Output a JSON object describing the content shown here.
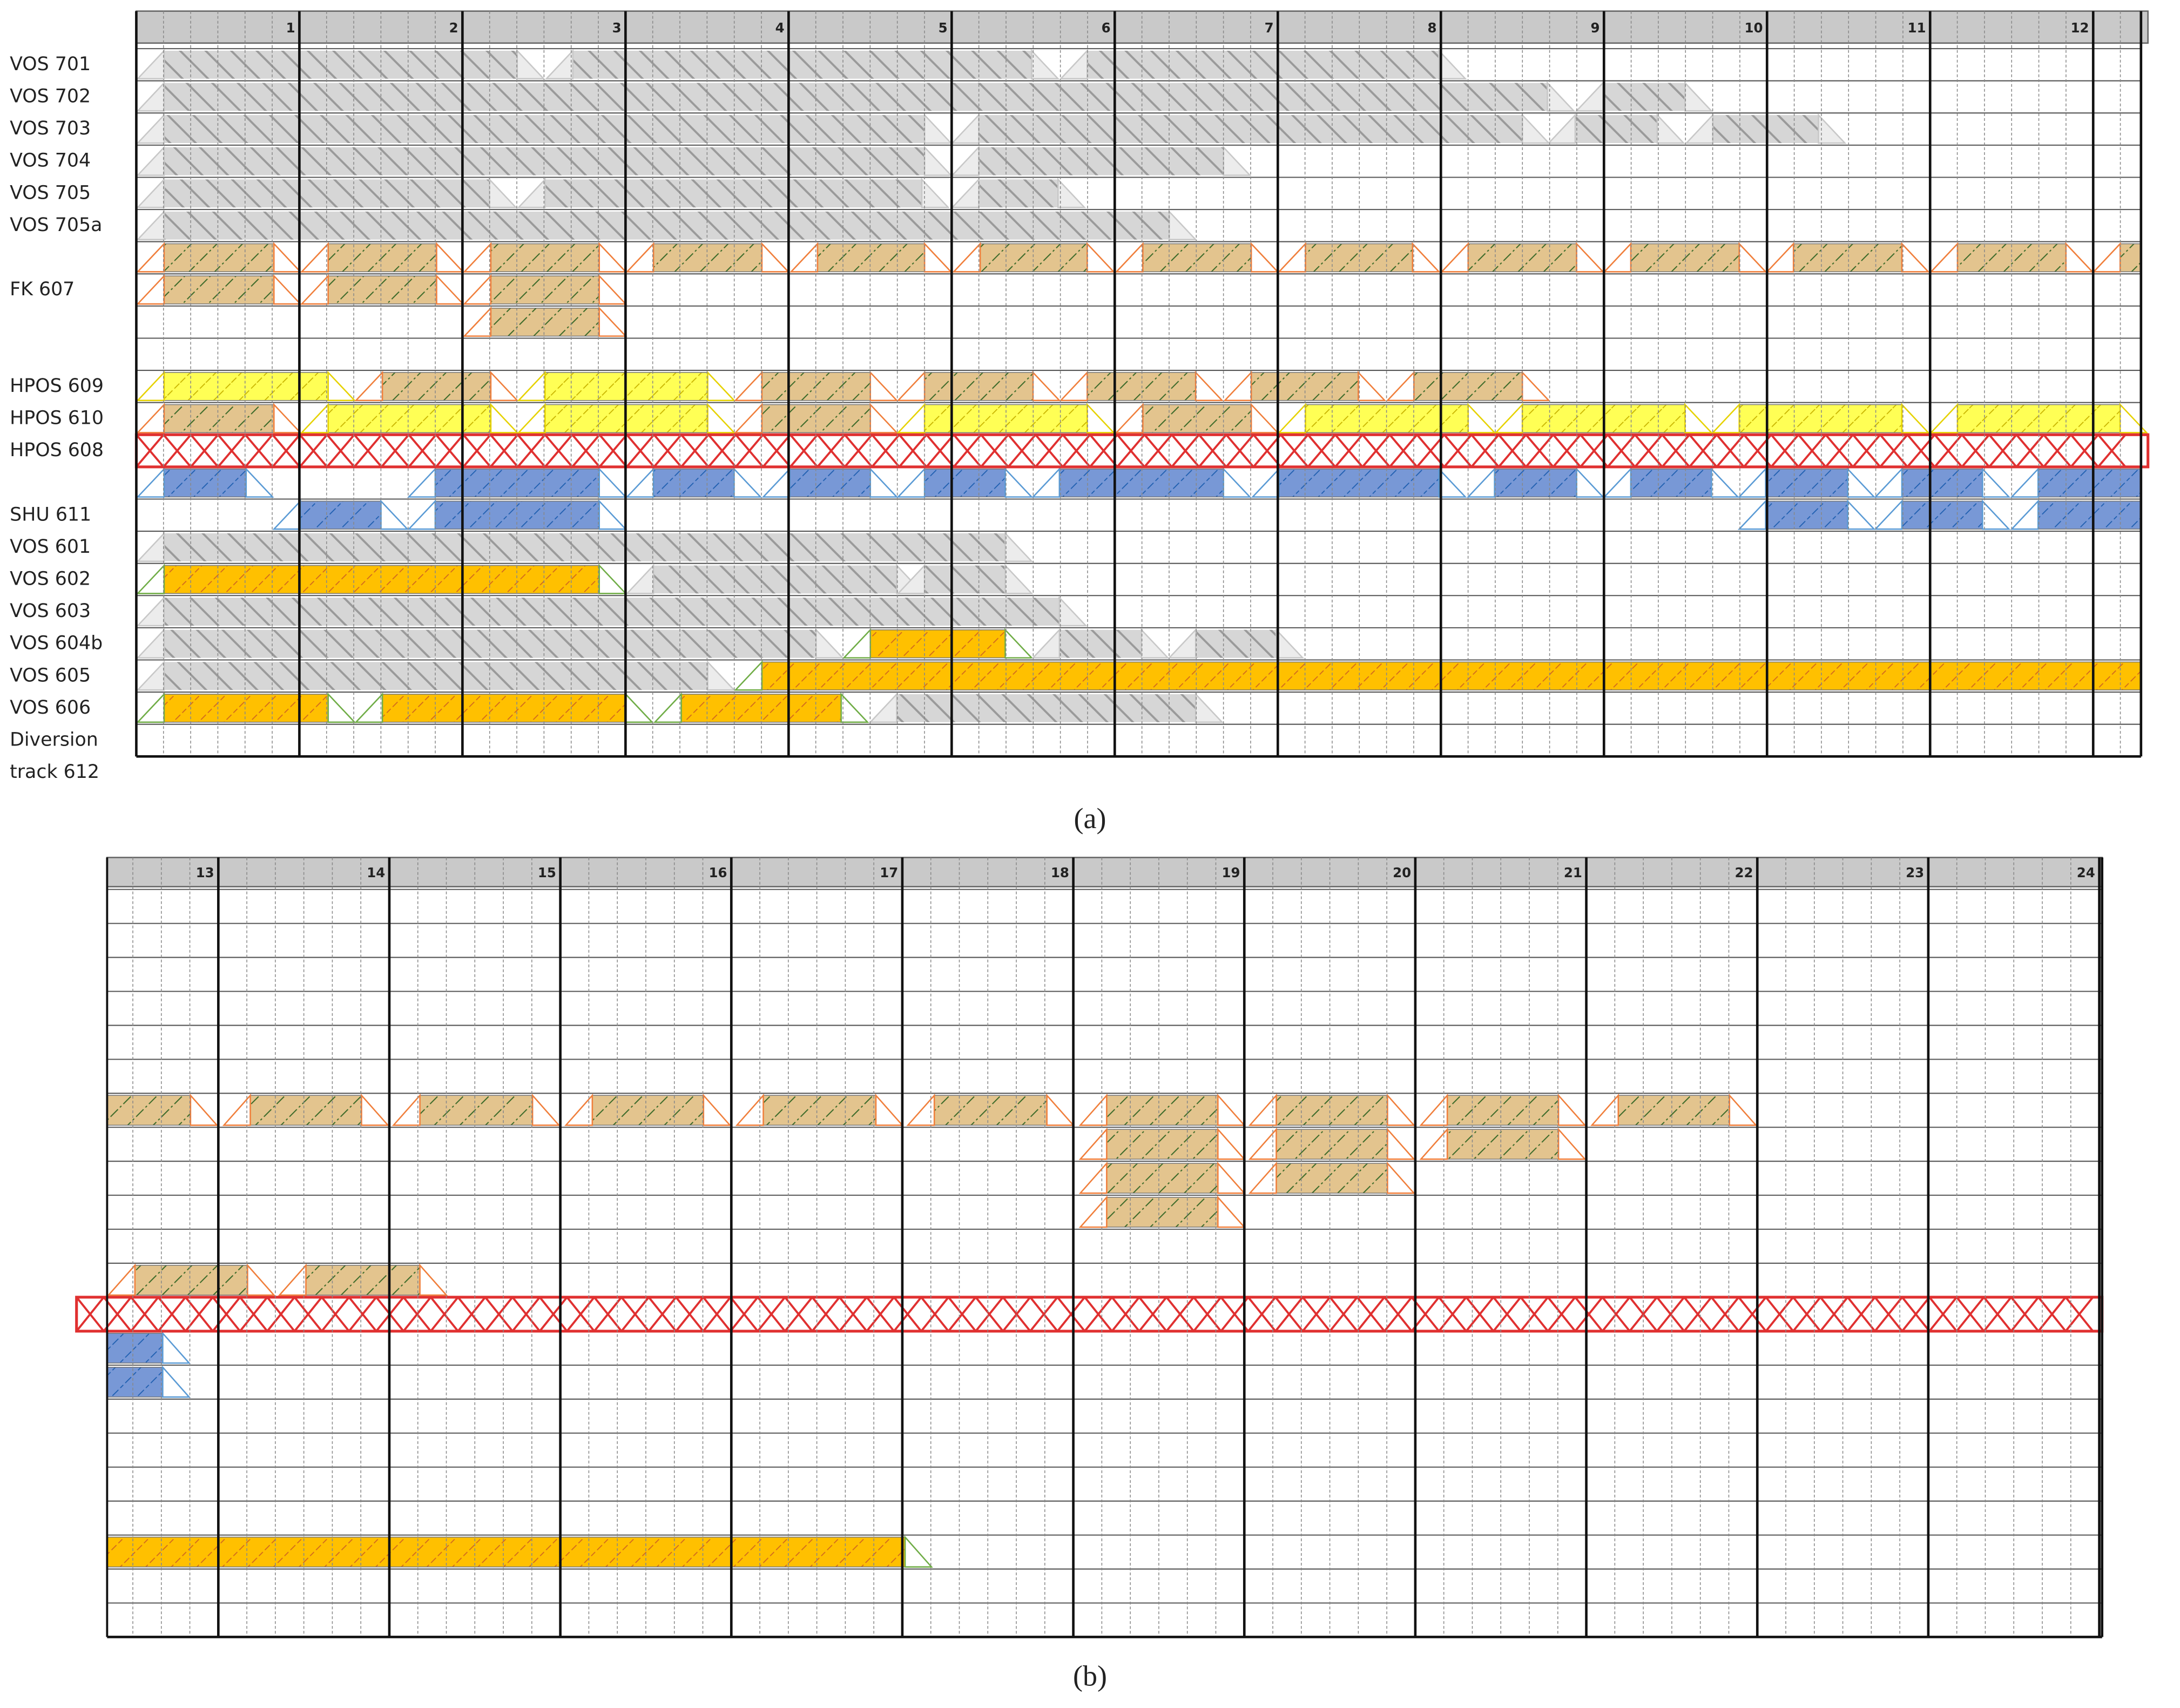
{
  "panels": [
    {
      "label": "(a)",
      "hours": [
        "1",
        "2",
        "3",
        "4",
        "5",
        "6",
        "7",
        "8",
        "9",
        "10",
        "11",
        "12"
      ],
      "rows": [
        "VOS 701",
        "VOS 702",
        "VOS 703",
        "VOS 704",
        "VOS 705",
        "VOS 705a",
        null,
        "FK 607",
        null,
        null,
        "HPOS 609",
        "HPOS 610",
        "HPOS 608",
        null,
        "SHU 611",
        "VOS 601",
        "VOS 602",
        "VOS 603",
        "VOS 604b",
        "VOS 605",
        "VOS 606",
        [
          "Diversion",
          "track 612"
        ]
      ]
    },
    {
      "label": "(b)",
      "hours": [
        "13",
        "14",
        "15",
        "16",
        "17",
        "18",
        "19",
        "20",
        "21",
        "22",
        "23",
        "24"
      ]
    }
  ]
}
